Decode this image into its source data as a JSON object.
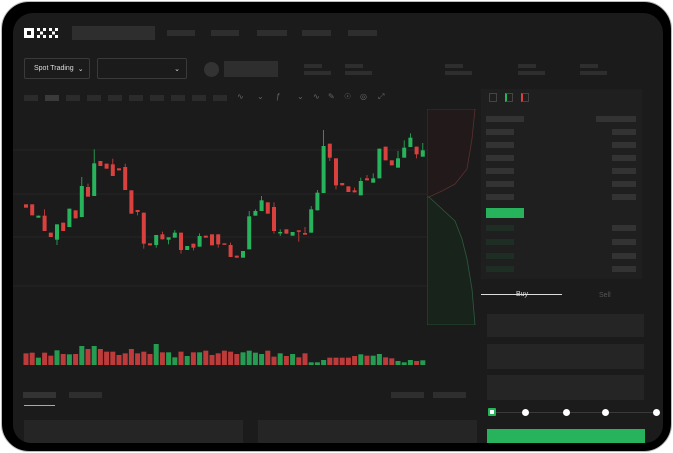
{
  "header": {
    "logo": "OKX"
  },
  "controls": {
    "market_type": "Spot Trading",
    "pair_select": ""
  },
  "trade_panel": {
    "tabs": [
      {
        "label": "Buy",
        "active": true
      },
      {
        "label": "Sell",
        "active": false
      }
    ],
    "leverage_steps": 5,
    "selected_step": 0
  },
  "colors": {
    "up": "#27b35c",
    "down": "#d9413f",
    "background": "#1b1b1b",
    "placeholder": "#2e2e2e"
  },
  "chart_data": {
    "type": "candlestick",
    "candles": [
      [
        550,
        540,
        550,
        540
      ],
      [
        550,
        517,
        550,
        517
      ],
      [
        510,
        516,
        516,
        510
      ],
      [
        516,
        470,
        535,
        470
      ],
      [
        465,
        452,
        465,
        452
      ],
      [
        444,
        490,
        490,
        428
      ],
      [
        495,
        470,
        495,
        470
      ],
      [
        482,
        537,
        537,
        482
      ],
      [
        532,
        508,
        532,
        508
      ],
      [
        512,
        605,
        632,
        512
      ],
      [
        602,
        573,
        612,
        573
      ],
      [
        575,
        673,
        715,
        575
      ],
      [
        680,
        665,
        680,
        665
      ],
      [
        672,
        657,
        672,
        657
      ],
      [
        670,
        635,
        687,
        635
      ],
      [
        658,
        652,
        658,
        652
      ],
      [
        662,
        593,
        672,
        593
      ],
      [
        592,
        522,
        592,
        522
      ],
      [
        533,
        527,
        533,
        517
      ],
      [
        525,
        432,
        525,
        417
      ],
      [
        433,
        427,
        433,
        427
      ],
      [
        428,
        458,
        458,
        420
      ],
      [
        460,
        445,
        468,
        445
      ],
      [
        444,
        451,
        451,
        430
      ],
      [
        450,
        465,
        473,
        450
      ],
      [
        465,
        413,
        465,
        402
      ],
      [
        413,
        425,
        425,
        413
      ],
      [
        432,
        420,
        432,
        412
      ],
      [
        423,
        455,
        463,
        423
      ],
      [
        456,
        450,
        456,
        450
      ],
      [
        460,
        427,
        460,
        427
      ],
      [
        460,
        430,
        460,
        420
      ],
      [
        433,
        430,
        433,
        430
      ],
      [
        428,
        392,
        435,
        392
      ],
      [
        396,
        390,
        396,
        390
      ],
      [
        390,
        410,
        410,
        390
      ],
      [
        415,
        514,
        530,
        415
      ],
      [
        516,
        530,
        535,
        516
      ],
      [
        530,
        562,
        575,
        530
      ],
      [
        556,
        522,
        556,
        522
      ],
      [
        542,
        470,
        556,
        462
      ],
      [
        464,
        467,
        475,
        455
      ],
      [
        475,
        462,
        475,
        462
      ],
      [
        456,
        467,
        467,
        456
      ],
      [
        472,
        468,
        472,
        438
      ],
      [
        464,
        459,
        482,
        459
      ],
      [
        465,
        535,
        545,
        465
      ],
      [
        532,
        585,
        593,
        532
      ],
      [
        584,
        725,
        773,
        584
      ],
      [
        732,
        690,
        732,
        680
      ],
      [
        688,
        607,
        688,
        595
      ],
      [
        614,
        607,
        614,
        607
      ],
      [
        604,
        587,
        604,
        587
      ],
      [
        592,
        586,
        600,
        586
      ],
      [
        577,
        620,
        630,
        577
      ],
      [
        628,
        622,
        638,
        622
      ],
      [
        615,
        628,
        643,
        615
      ],
      [
        628,
        717,
        717,
        628
      ],
      [
        723,
        682,
        723,
        682
      ],
      [
        682,
        667,
        682,
        667
      ],
      [
        660,
        688,
        710,
        660
      ],
      [
        690,
        720,
        742,
        690
      ],
      [
        722,
        750,
        763,
        722
      ],
      [
        723,
        700,
        723,
        688
      ],
      [
        693,
        712,
        734,
        693
      ]
    ],
    "volume": [
      35,
      37,
      22,
      37,
      28,
      44,
      33,
      32,
      33,
      57,
      48,
      57,
      48,
      40,
      40,
      30,
      35,
      48,
      35,
      40,
      33,
      63,
      38,
      38,
      23,
      40,
      27,
      38,
      38,
      43,
      30,
      35,
      43,
      40,
      33,
      38,
      43,
      37,
      33,
      43,
      25,
      35,
      27,
      33,
      23,
      35,
      8,
      8,
      15,
      22,
      22,
      22,
      22,
      27,
      32,
      28,
      28,
      33,
      23,
      20,
      12,
      8,
      15,
      12,
      14
    ]
  }
}
